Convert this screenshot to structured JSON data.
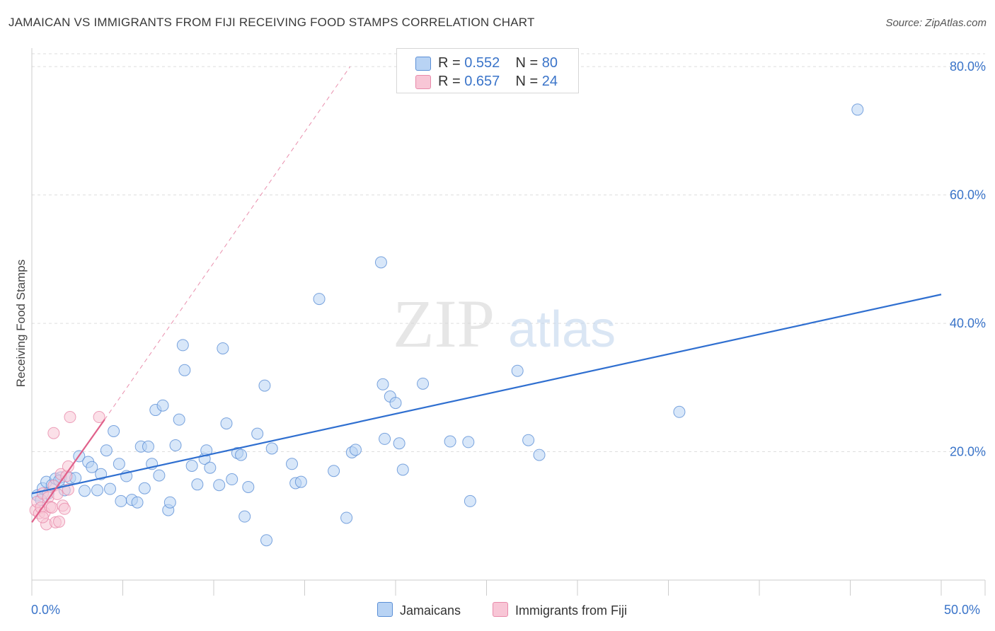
{
  "title": "JAMAICAN VS IMMIGRANTS FROM FIJI RECEIVING FOOD STAMPS CORRELATION CHART",
  "source": "Source: ZipAtlas.com",
  "watermark": {
    "zip": "ZIP",
    "atlas": "atlas"
  },
  "colors": {
    "jamaicans_fill": "#b8d3f4",
    "jamaicans_stroke": "#5b8fd6",
    "jamaicans_line": "#2f6fd0",
    "fiji_fill": "#f8c6d6",
    "fiji_stroke": "#e88aaa",
    "fiji_line": "#e0608a",
    "axis_label": "#3a74c9",
    "grid": "#dddddd"
  },
  "legend_top": {
    "rows": [
      {
        "r_label": "R = ",
        "r_value": "0.552",
        "n_label": "N = ",
        "n_value": "80"
      },
      {
        "r_label": "R = ",
        "r_value": "0.657",
        "n_label": "N = ",
        "n_value": "24"
      }
    ]
  },
  "chart_data": {
    "type": "scatter",
    "title": "JAMAICAN VS IMMIGRANTS FROM FIJI RECEIVING FOOD STAMPS CORRELATION CHART",
    "xlabel": "",
    "ylabel": "Receiving Food Stamps",
    "xlim": [
      0,
      50
    ],
    "ylim": [
      0,
      82
    ],
    "x_tick_labels": [
      "0.0%",
      "50.0%"
    ],
    "y_ticks": [
      20,
      40,
      60,
      80
    ],
    "y_tick_labels": [
      "20.0%",
      "40.0%",
      "60.0%",
      "80.0%"
    ],
    "grid": true,
    "legend_position": "bottom",
    "series": [
      {
        "name": "Jamaicans",
        "points": [
          [
            0.3,
            13.2
          ],
          [
            0.6,
            14.3
          ],
          [
            0.8,
            15.3
          ],
          [
            0.9,
            13.5
          ],
          [
            1.1,
            14.8
          ],
          [
            1.3,
            15.8
          ],
          [
            1.6,
            16.0
          ],
          [
            1.8,
            14.0
          ],
          [
            2.1,
            15.9
          ],
          [
            2.4,
            15.9
          ],
          [
            2.6,
            19.3
          ],
          [
            2.9,
            13.9
          ],
          [
            3.1,
            18.4
          ],
          [
            3.3,
            17.6
          ],
          [
            3.6,
            14.0
          ],
          [
            3.8,
            16.5
          ],
          [
            4.1,
            20.2
          ],
          [
            4.3,
            14.2
          ],
          [
            4.5,
            23.2
          ],
          [
            4.8,
            18.1
          ],
          [
            4.9,
            12.3
          ],
          [
            5.2,
            16.2
          ],
          [
            5.5,
            12.5
          ],
          [
            5.8,
            12.1
          ],
          [
            6.0,
            20.8
          ],
          [
            6.2,
            14.3
          ],
          [
            6.4,
            20.8
          ],
          [
            6.6,
            18.1
          ],
          [
            6.8,
            26.5
          ],
          [
            7.0,
            16.3
          ],
          [
            7.2,
            27.2
          ],
          [
            7.5,
            10.9
          ],
          [
            7.6,
            12.1
          ],
          [
            7.9,
            21.0
          ],
          [
            8.1,
            25.0
          ],
          [
            8.3,
            36.6
          ],
          [
            8.4,
            32.7
          ],
          [
            8.8,
            17.8
          ],
          [
            9.1,
            14.9
          ],
          [
            9.5,
            18.9
          ],
          [
            9.6,
            20.2
          ],
          [
            9.8,
            17.5
          ],
          [
            10.3,
            14.8
          ],
          [
            10.5,
            36.1
          ],
          [
            10.7,
            24.4
          ],
          [
            11.0,
            15.7
          ],
          [
            11.3,
            19.8
          ],
          [
            11.5,
            19.5
          ],
          [
            11.7,
            9.9
          ],
          [
            11.9,
            14.5
          ],
          [
            12.4,
            22.8
          ],
          [
            12.8,
            30.3
          ],
          [
            12.9,
            6.2
          ],
          [
            13.2,
            20.5
          ],
          [
            14.3,
            18.1
          ],
          [
            14.5,
            15.1
          ],
          [
            14.8,
            15.3
          ],
          [
            15.8,
            43.8
          ],
          [
            16.6,
            17.0
          ],
          [
            17.3,
            9.7
          ],
          [
            17.6,
            19.9
          ],
          [
            17.8,
            20.3
          ],
          [
            19.2,
            49.5
          ],
          [
            19.3,
            30.5
          ],
          [
            19.4,
            22.0
          ],
          [
            19.7,
            28.6
          ],
          [
            20.0,
            27.6
          ],
          [
            20.2,
            21.3
          ],
          [
            20.4,
            17.2
          ],
          [
            21.5,
            30.6
          ],
          [
            23.0,
            21.6
          ],
          [
            24.0,
            21.5
          ],
          [
            24.1,
            12.3
          ],
          [
            26.7,
            32.6
          ],
          [
            27.3,
            21.8
          ],
          [
            27.9,
            19.5
          ],
          [
            35.6,
            26.2
          ],
          [
            45.4,
            73.3
          ],
          [
            0.5,
            12.5
          ],
          [
            1.5,
            15.5
          ]
        ]
      },
      {
        "name": "Immigrants from Fiji",
        "points": [
          [
            0.2,
            10.9
          ],
          [
            0.3,
            12.2
          ],
          [
            0.4,
            10.4
          ],
          [
            0.5,
            11.3
          ],
          [
            0.6,
            13.5
          ],
          [
            0.7,
            10.5
          ],
          [
            0.8,
            8.7
          ],
          [
            0.9,
            12.9
          ],
          [
            1.0,
            11.4
          ],
          [
            1.1,
            11.3
          ],
          [
            1.2,
            14.7
          ],
          [
            1.3,
            9.0
          ],
          [
            1.4,
            13.4
          ],
          [
            1.5,
            9.1
          ],
          [
            1.6,
            16.5
          ],
          [
            1.7,
            11.6
          ],
          [
            1.8,
            11.1
          ],
          [
            1.9,
            16.2
          ],
          [
            2.0,
            14.1
          ],
          [
            2.0,
            17.7
          ],
          [
            2.1,
            25.4
          ],
          [
            1.2,
            22.9
          ],
          [
            3.7,
            25.4
          ],
          [
            0.6,
            9.8
          ]
        ]
      }
    ],
    "trend_lines": [
      {
        "series": "Jamaicans",
        "x": [
          0,
          50
        ],
        "y": [
          13.5,
          44.5
        ],
        "style": "solid"
      },
      {
        "series": "Immigrants from Fiji",
        "x": [
          0,
          4.0
        ],
        "y": [
          9.0,
          25.0
        ],
        "style": "solid"
      },
      {
        "series": "Immigrants from Fiji",
        "x": [
          4.0,
          17.5
        ],
        "y": [
          25.0,
          80.0
        ],
        "style": "dashed"
      }
    ]
  }
}
